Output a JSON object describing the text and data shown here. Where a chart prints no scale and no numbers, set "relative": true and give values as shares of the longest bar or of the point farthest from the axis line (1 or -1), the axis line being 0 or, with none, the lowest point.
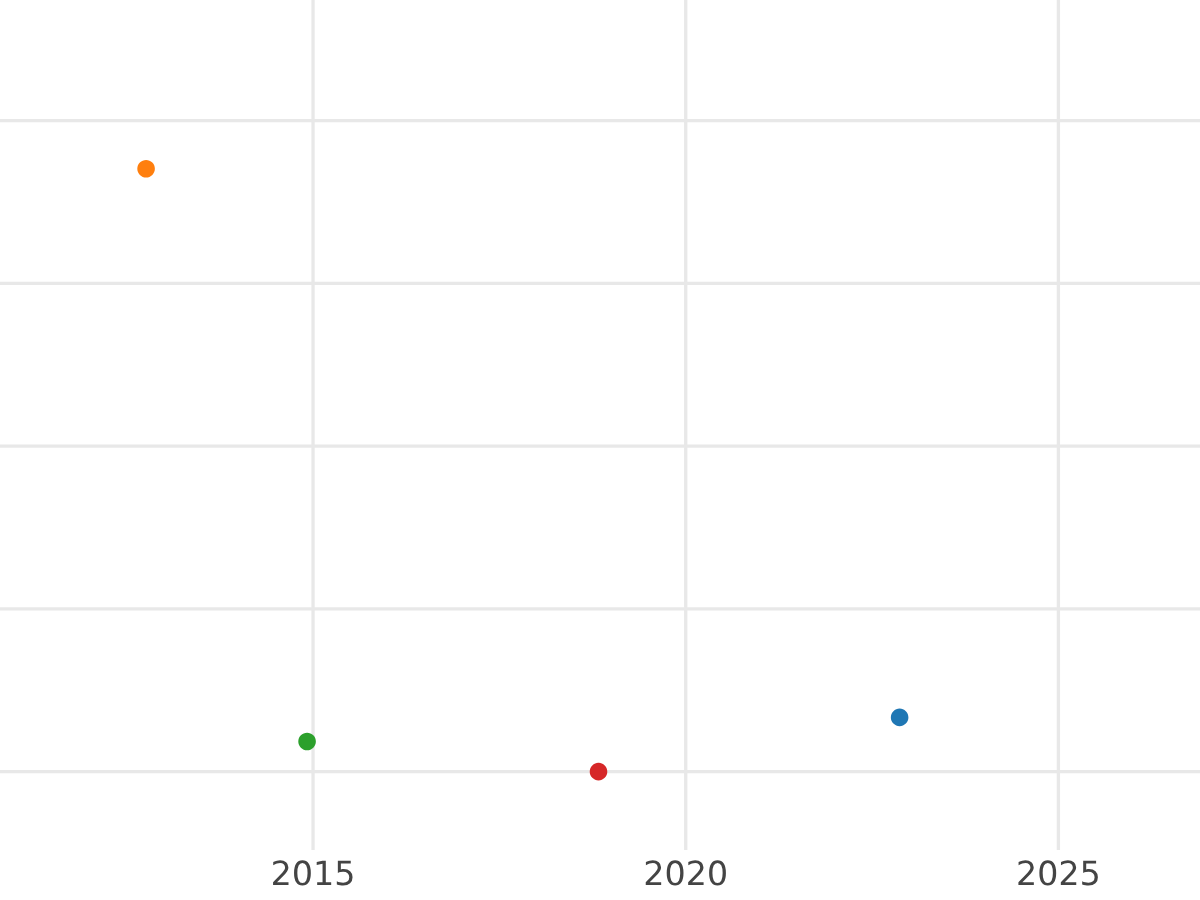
{
  "chart_data": {
    "type": "scatter",
    "relative": true,
    "x": [
      2022.87,
      2012.76,
      2014.92,
      2018.83
    ],
    "values": [
      0.09,
      1,
      0.05,
      0
    ],
    "colors": [
      "#1f77b4",
      "#ff7f0e",
      "#2ca02c",
      "#d62728"
    ],
    "xlim": [
      2010.8,
      2026.9
    ],
    "xticks": [
      2015,
      2020,
      2025
    ],
    "grid": true,
    "tick_labels": "x",
    "marker": "circle"
  }
}
